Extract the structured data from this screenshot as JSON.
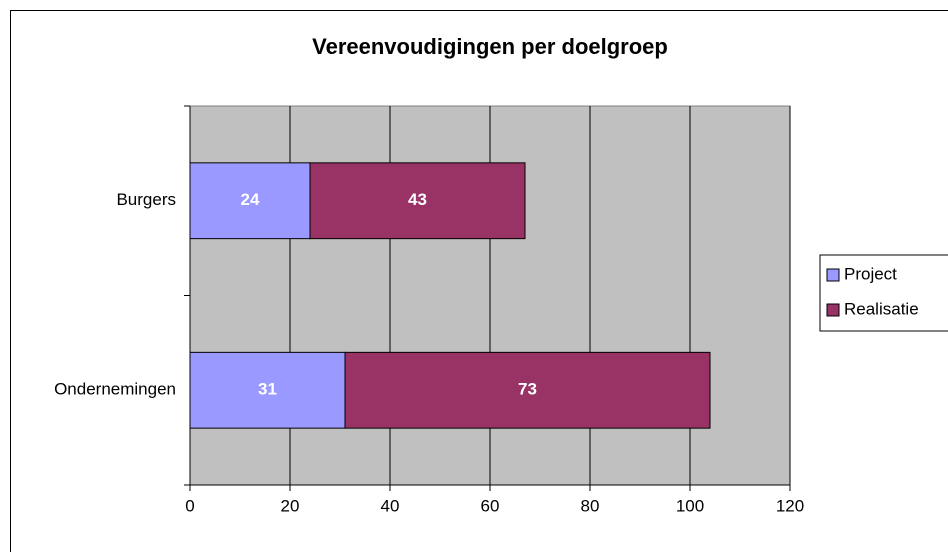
{
  "chart_data": {
    "type": "bar",
    "orientation": "horizontal",
    "stacked": true,
    "title": "Vereenvoudigingen per doelgroep",
    "categories": [
      "Burgers",
      "Ondernemingen"
    ],
    "series": [
      {
        "name": "Project",
        "color": "#9999ff",
        "values": [
          24,
          31
        ]
      },
      {
        "name": "Realisatie",
        "color": "#993366",
        "values": [
          43,
          73
        ]
      }
    ],
    "xlim": [
      0,
      120
    ],
    "xticks": [
      0,
      20,
      40,
      60,
      80,
      100,
      120
    ],
    "grid": true,
    "legend": "right"
  }
}
